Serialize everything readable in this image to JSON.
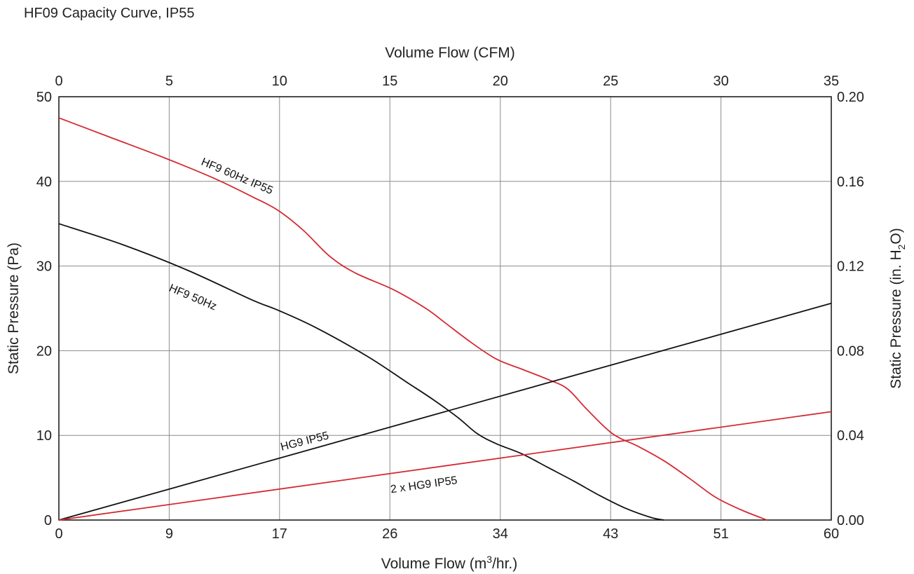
{
  "title": "HF09 Capacity Curve, IP55",
  "chart_data": {
    "type": "line",
    "title": "HF09 Capacity Curve, IP55",
    "xlabel_bottom_parts": [
      "Volume Flow (m",
      "3",
      "/hr.)"
    ],
    "xlabel_top": "Volume Flow (CFM)",
    "ylabel_left": "Static Pressure (Pa)",
    "ylabel_right_parts": [
      "Static Pressure (in. H",
      "2",
      "O)"
    ],
    "xlim": [
      0,
      60
    ],
    "ylim": [
      0,
      50
    ],
    "grid": true,
    "x_ticks_bottom": {
      "values": [
        0,
        8.57,
        17.14,
        25.71,
        34.29,
        42.86,
        51.43,
        60
      ],
      "labels": [
        "0",
        "9",
        "17",
        "26",
        "34",
        "43",
        "51",
        "60"
      ]
    },
    "x_ticks_top": {
      "values": [
        0,
        8.57,
        17.14,
        25.71,
        34.29,
        42.86,
        51.43,
        60
      ],
      "labels": [
        "0",
        "5",
        "10",
        "15",
        "20",
        "25",
        "30",
        "35"
      ]
    },
    "y_ticks_left": {
      "values": [
        0,
        10,
        20,
        30,
        40,
        50
      ],
      "labels": [
        "0",
        "10",
        "20",
        "30",
        "40",
        "50"
      ]
    },
    "y_ticks_right": {
      "values": [
        0,
        10,
        20,
        30,
        40,
        50
      ],
      "labels": [
        "0.00",
        "0.04",
        "0.08",
        "0.12",
        "0.16",
        "0.20"
      ]
    },
    "series": [
      {
        "name": "HF9 60Hz IP55",
        "color": "#d42a33",
        "x": [
          0,
          4,
          8,
          12,
          15,
          17,
          19,
          21,
          23,
          26,
          28.5,
          30,
          32,
          34,
          36,
          38,
          39.5,
          41,
          43,
          45,
          47,
          49,
          51,
          53,
          55
        ],
        "y": [
          47.5,
          45.2,
          42.9,
          40.4,
          38.2,
          36.6,
          34.2,
          31.2,
          29.2,
          27.2,
          25.0,
          23.3,
          21.0,
          19.0,
          17.8,
          16.6,
          15.5,
          13.1,
          10.2,
          8.7,
          7.0,
          4.9,
          2.7,
          1.2,
          0
        ]
      },
      {
        "name": "HF9 50Hz",
        "color": "#111111",
        "x": [
          0,
          5,
          10,
          15,
          17,
          20,
          24,
          27,
          29,
          31,
          32.5,
          34,
          36,
          38,
          40,
          42,
          44,
          46,
          47
        ],
        "y": [
          35.0,
          32.5,
          29.5,
          26.0,
          24.8,
          22.7,
          19.3,
          16.3,
          14.3,
          12.1,
          10.2,
          9.0,
          7.8,
          6.2,
          4.6,
          2.9,
          1.4,
          0.3,
          0
        ]
      },
      {
        "name": "HG9 IP55",
        "color": "#111111",
        "x": [
          0,
          60
        ],
        "y": [
          0,
          25.6
        ]
      },
      {
        "name": "2 x HG9 IP55",
        "color": "#d42a33",
        "x": [
          0,
          60
        ],
        "y": [
          0,
          12.8
        ]
      }
    ],
    "annotations": [
      {
        "text": "HF9 60Hz IP55",
        "series": 0
      },
      {
        "text": "HF9 50Hz",
        "series": 1
      },
      {
        "text": "HG9 IP55",
        "series": 2
      },
      {
        "text": "2 x HG9 IP55",
        "series": 3
      }
    ]
  }
}
